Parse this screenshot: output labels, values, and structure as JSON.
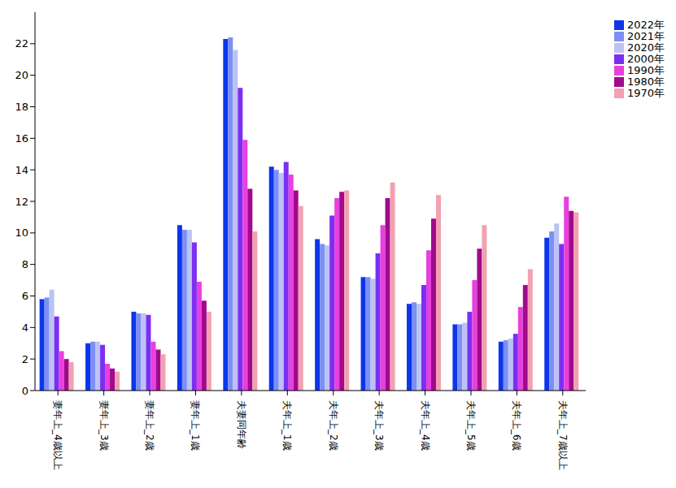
{
  "chart_data": {
    "type": "bar",
    "categories": [
      "妻年上_4歳以上",
      "妻年上_3歳",
      "妻年上_2歳",
      "妻年上_1歳",
      "夫妻同年齢",
      "夫年上_1歳",
      "夫年上_2歳",
      "夫年上_3歳",
      "夫年上_4歳",
      "夫年上_5歳",
      "夫年上_6歳",
      "夫年上_7歳以上"
    ],
    "series": [
      {
        "name": "2022年",
        "color": "#0b36ea",
        "values": [
          5.8,
          3.0,
          5.0,
          10.5,
          22.3,
          14.2,
          9.6,
          7.2,
          5.5,
          4.2,
          3.1,
          9.7
        ]
      },
      {
        "name": "2021年",
        "color": "#7d8ff6",
        "values": [
          5.9,
          3.1,
          4.9,
          10.2,
          22.4,
          14.0,
          9.3,
          7.2,
          5.6,
          4.2,
          3.2,
          10.1
        ]
      },
      {
        "name": "2020年",
        "color": "#bcc3f4",
        "values": [
          6.4,
          3.1,
          4.9,
          10.2,
          21.6,
          13.8,
          9.2,
          7.1,
          5.5,
          4.3,
          3.3,
          10.6
        ]
      },
      {
        "name": "2000年",
        "color": "#7b2ff3",
        "values": [
          4.7,
          2.9,
          4.8,
          9.4,
          19.2,
          14.5,
          11.1,
          8.7,
          6.7,
          5.0,
          3.6,
          9.3
        ]
      },
      {
        "name": "1990年",
        "color": "#e840df",
        "values": [
          2.5,
          1.7,
          3.1,
          6.9,
          15.9,
          13.7,
          12.2,
          10.5,
          8.9,
          7.0,
          5.3,
          12.3
        ]
      },
      {
        "name": "1980年",
        "color": "#a10a8c",
        "values": [
          2.0,
          1.4,
          2.6,
          5.7,
          12.8,
          12.7,
          12.6,
          12.2,
          10.9,
          9.0,
          6.7,
          11.4
        ]
      },
      {
        "name": "1970年",
        "color": "#f2a1b1",
        "values": [
          1.8,
          1.2,
          2.3,
          5.0,
          10.1,
          11.7,
          12.7,
          13.2,
          12.4,
          10.5,
          7.7,
          11.3
        ]
      }
    ],
    "ylim": [
      0,
      24
    ],
    "yticks": [
      0,
      2,
      4,
      6,
      8,
      10,
      12,
      14,
      16,
      18,
      20,
      22
    ],
    "grid": false,
    "legend": "top-right"
  }
}
